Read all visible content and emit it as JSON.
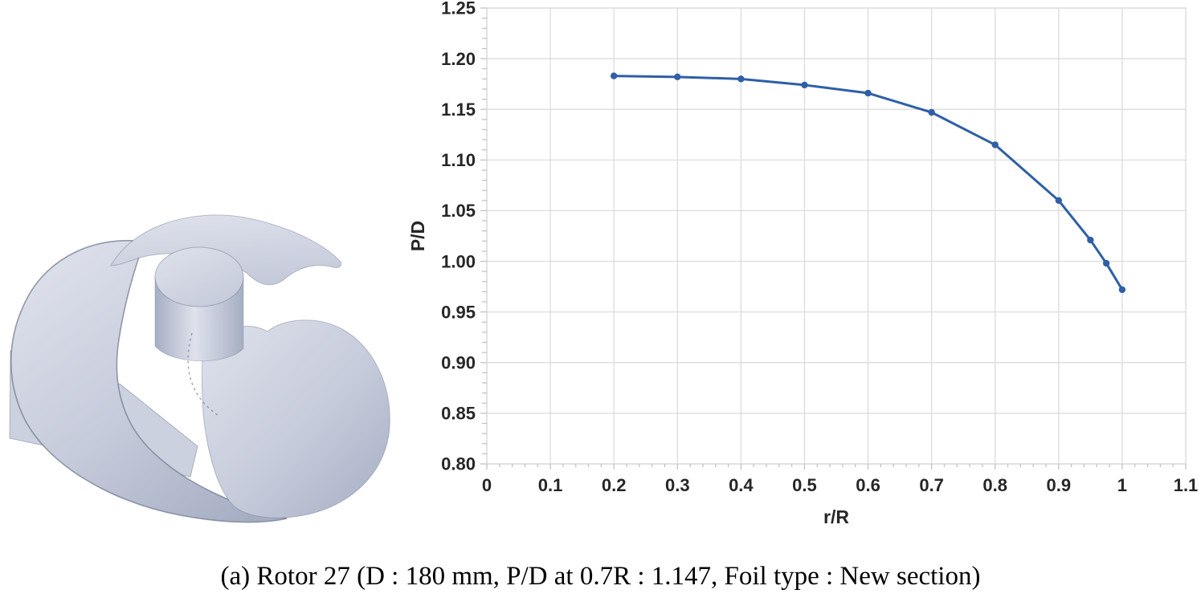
{
  "caption": "(a) Rotor 27 (D : 180 mm, P/D at 0.7R : 1.147, Foil type : New section)",
  "figure": {
    "name": "rotor-27-3d-render",
    "description": "3D CAD render of three-bladed Rotor 27 propeller with cylindrical hub",
    "blade_count": 3,
    "colors": {
      "light": "#dfe2ec",
      "mid": "#c6cbdb",
      "dark": "#a6aec3",
      "edge": "#747b90",
      "plate": "#ccd1df"
    }
  },
  "chart_data": {
    "type": "line",
    "title": "",
    "xlabel": "r/R",
    "ylabel": "P/D",
    "x": [
      0.2,
      0.3,
      0.4,
      0.5,
      0.6,
      0.7,
      0.8,
      0.9,
      0.95,
      0.975,
      1.0
    ],
    "y": [
      1.183,
      1.182,
      1.18,
      1.174,
      1.166,
      1.147,
      1.115,
      1.06,
      1.021,
      0.998,
      0.972
    ],
    "xlim": [
      0,
      1.1
    ],
    "ylim": [
      0.8,
      1.25
    ],
    "x_major_step": 0.1,
    "y_major_step": 0.05,
    "x_minor_step": 0.02,
    "y_minor_step": 0.01,
    "x_tick_labels": [
      "0",
      "0.1",
      "0.2",
      "0.3",
      "0.4",
      "0.5",
      "0.6",
      "0.7",
      "0.8",
      "0.9",
      "1",
      "1.1"
    ],
    "y_tick_labels": [
      "1.25",
      "1.20",
      "1.15",
      "1.10",
      "1.05",
      "1.00",
      "0.95",
      "0.90",
      "0.85",
      "0.80"
    ],
    "grid": true,
    "legend": false,
    "line_color": "#2e5fa7",
    "marker": "circle",
    "gridline_color": "#d9d9d9",
    "axis_color": "#bfbfbf",
    "tick_label_color": "#262626"
  }
}
